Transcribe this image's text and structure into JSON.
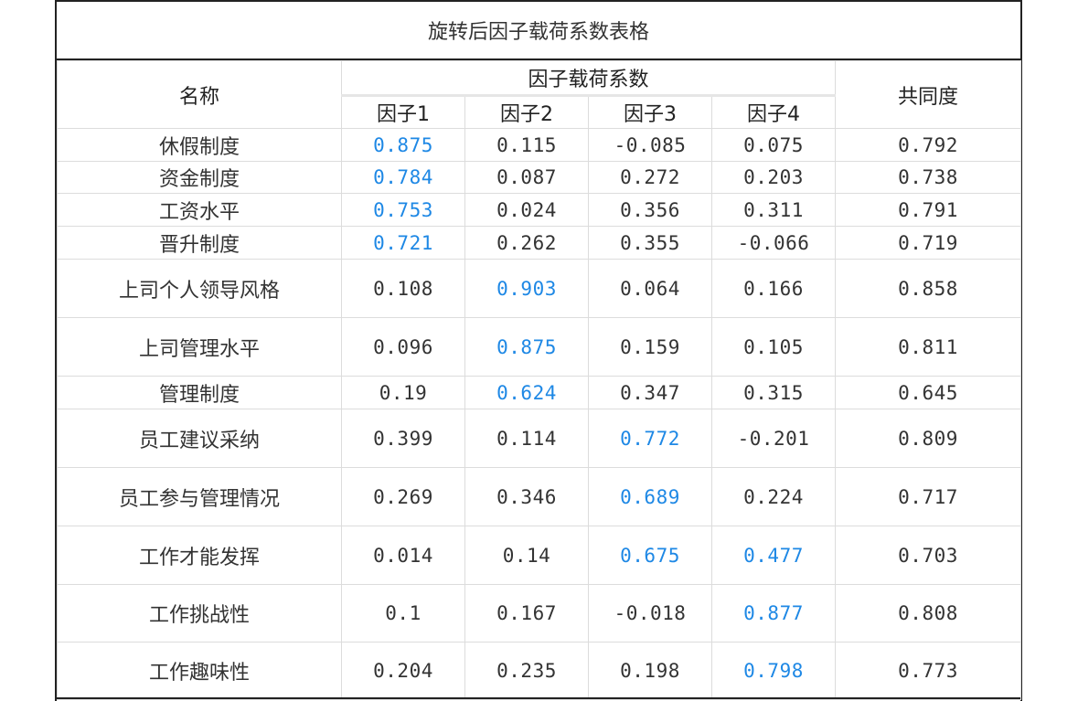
{
  "title": "旋转后因子载荷系数表格",
  "header": {
    "name": "名称",
    "group": "因子载荷系数",
    "factors": [
      "因子1",
      "因子2",
      "因子3",
      "因子4"
    ],
    "communality": "共同度"
  },
  "accent_color": "#1e88e5",
  "rows": [
    {
      "name": "休假制度",
      "f1": "0.875",
      "f2": "0.115",
      "f3": "-0.085",
      "f4": "0.075",
      "h": "0.792",
      "highlight": [
        1
      ]
    },
    {
      "name": "资金制度",
      "f1": "0.784",
      "f2": "0.087",
      "f3": "0.272",
      "f4": "0.203",
      "h": "0.738",
      "highlight": [
        1
      ]
    },
    {
      "name": "工资水平",
      "f1": "0.753",
      "f2": "0.024",
      "f3": "0.356",
      "f4": "0.311",
      "h": "0.791",
      "highlight": [
        1
      ]
    },
    {
      "name": "晋升制度",
      "f1": "0.721",
      "f2": "0.262",
      "f3": "0.355",
      "f4": "-0.066",
      "h": "0.719",
      "highlight": [
        1
      ]
    },
    {
      "name": "上司个人领导风格",
      "f1": "0.108",
      "f2": "0.903",
      "f3": "0.064",
      "f4": "0.166",
      "h": "0.858",
      "highlight": [
        2
      ]
    },
    {
      "name": "上司管理水平",
      "f1": "0.096",
      "f2": "0.875",
      "f3": "0.159",
      "f4": "0.105",
      "h": "0.811",
      "highlight": [
        2
      ]
    },
    {
      "name": "管理制度",
      "f1": "0.19",
      "f2": "0.624",
      "f3": "0.347",
      "f4": "0.315",
      "h": "0.645",
      "highlight": [
        2
      ]
    },
    {
      "name": "员工建议采纳",
      "f1": "0.399",
      "f2": "0.114",
      "f3": "0.772",
      "f4": "-0.201",
      "h": "0.809",
      "highlight": [
        3
      ]
    },
    {
      "name": "员工参与管理情况",
      "f1": "0.269",
      "f2": "0.346",
      "f3": "0.689",
      "f4": "0.224",
      "h": "0.717",
      "highlight": [
        3
      ]
    },
    {
      "name": "工作才能发挥",
      "f1": "0.014",
      "f2": "0.14",
      "f3": "0.675",
      "f4": "0.477",
      "h": "0.703",
      "highlight": [
        3,
        4
      ]
    },
    {
      "name": "工作挑战性",
      "f1": "0.1",
      "f2": "0.167",
      "f3": "-0.018",
      "f4": "0.877",
      "h": "0.808",
      "highlight": [
        4
      ]
    },
    {
      "name": "工作趣味性",
      "f1": "0.204",
      "f2": "0.235",
      "f3": "0.198",
      "f4": "0.798",
      "h": "0.773",
      "highlight": [
        4
      ]
    }
  ]
}
